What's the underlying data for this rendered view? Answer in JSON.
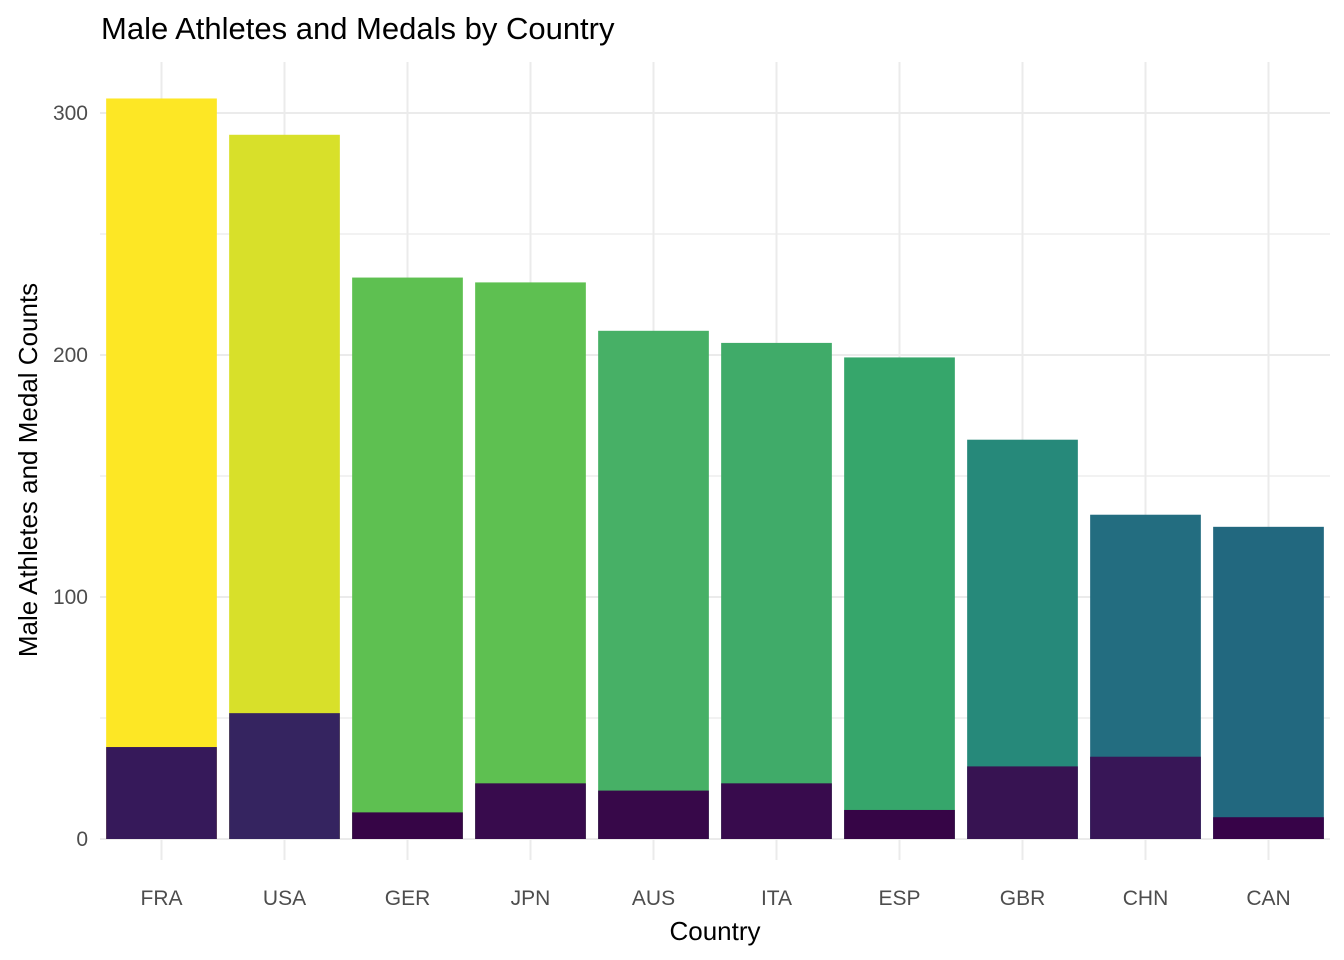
{
  "chart_data": {
    "type": "bar",
    "title": "Male Athletes and Medals by Country",
    "xlabel": "Country",
    "ylabel": "Male Athletes and Medal Counts",
    "categories": [
      "FRA",
      "USA",
      "GER",
      "JPN",
      "AUS",
      "ITA",
      "ESP",
      "GBR",
      "CHN",
      "CAN"
    ],
    "series": [
      {
        "values": [
          306,
          291,
          232,
          230,
          210,
          205,
          199,
          165,
          134,
          129
        ],
        "colors": [
          "#fde725",
          "#d8e02a",
          "#5ec051",
          "#5ec051",
          "#47b066",
          "#40ab69",
          "#36a66b",
          "#26897a",
          "#236d80",
          "#22687f"
        ]
      },
      {
        "values": [
          38,
          52,
          11,
          23,
          20,
          23,
          12,
          30,
          34,
          9
        ],
        "colors": [
          "#36195a",
          "#352460",
          "#360546",
          "#380b4d",
          "#370849",
          "#380b4d",
          "#360546",
          "#371352",
          "#381657",
          "#370348"
        ]
      }
    ],
    "ylim": [
      0,
      320
    ],
    "yticks": [
      0,
      100,
      200,
      300
    ],
    "grid": true,
    "legend": "none"
  }
}
